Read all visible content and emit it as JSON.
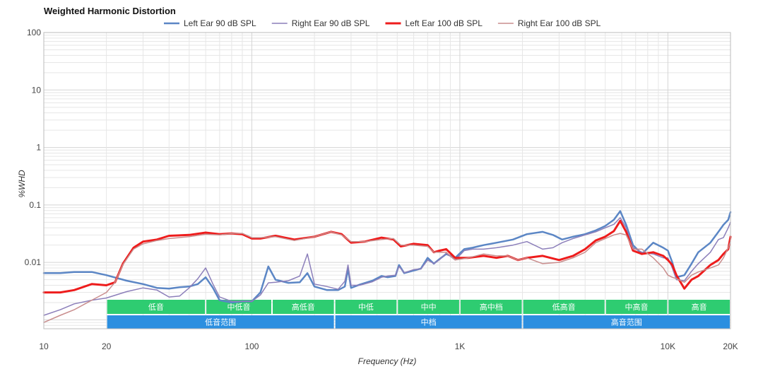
{
  "chart_data": {
    "type": "line",
    "title": "Weighted Harmonic Distortion",
    "xlabel": "Frequency (Hz)",
    "ylabel": "%WHD",
    "x_scale": "log",
    "y_scale": "log",
    "xlim": [
      10,
      20000
    ],
    "ylim": [
      0.0007,
      100
    ],
    "grid": true,
    "legend_position": "top-center",
    "x_ticks": [
      {
        "value": 10,
        "label": "10"
      },
      {
        "value": 20,
        "label": "20"
      },
      {
        "value": 100,
        "label": "100"
      },
      {
        "value": 1000,
        "label": "1K"
      },
      {
        "value": 10000,
        "label": "10K"
      },
      {
        "value": 20000,
        "label": "20K"
      }
    ],
    "y_ticks": [
      {
        "value": 100,
        "label": "100"
      },
      {
        "value": 10,
        "label": "10"
      },
      {
        "value": 1,
        "label": "1"
      },
      {
        "value": 0.1,
        "label": "0.1"
      },
      {
        "value": 0.01,
        "label": "0.01"
      }
    ],
    "series": [
      {
        "name": "Left Ear 90 dB SPL",
        "color": "#5b86c5",
        "width": 2.5,
        "points": [
          [
            10,
            0.0065
          ],
          [
            12,
            0.0065
          ],
          [
            14,
            0.0068
          ],
          [
            17,
            0.0068
          ],
          [
            20,
            0.006
          ],
          [
            25,
            0.0048
          ],
          [
            30,
            0.0042
          ],
          [
            35,
            0.0036
          ],
          [
            40,
            0.0035
          ],
          [
            45,
            0.0037
          ],
          [
            50,
            0.0038
          ],
          [
            55,
            0.0042
          ],
          [
            60,
            0.0055
          ],
          [
            65,
            0.0036
          ],
          [
            70,
            0.0022
          ],
          [
            80,
            0.002
          ],
          [
            90,
            0.0021
          ],
          [
            100,
            0.0021
          ],
          [
            110,
            0.003
          ],
          [
            120,
            0.0085
          ],
          [
            130,
            0.005
          ],
          [
            150,
            0.0044
          ],
          [
            170,
            0.0045
          ],
          [
            185,
            0.0065
          ],
          [
            200,
            0.0038
          ],
          [
            230,
            0.0033
          ],
          [
            260,
            0.0033
          ],
          [
            280,
            0.0038
          ],
          [
            290,
            0.0078
          ],
          [
            300,
            0.0036
          ],
          [
            330,
            0.0041
          ],
          [
            380,
            0.0048
          ],
          [
            420,
            0.0058
          ],
          [
            450,
            0.0055
          ],
          [
            490,
            0.0058
          ],
          [
            510,
            0.009
          ],
          [
            540,
            0.0065
          ],
          [
            600,
            0.0072
          ],
          [
            650,
            0.0078
          ],
          [
            700,
            0.012
          ],
          [
            750,
            0.0095
          ],
          [
            800,
            0.0115
          ],
          [
            860,
            0.014
          ],
          [
            950,
            0.012
          ],
          [
            1050,
            0.017
          ],
          [
            1150,
            0.018
          ],
          [
            1300,
            0.02
          ],
          [
            1500,
            0.022
          ],
          [
            1800,
            0.025
          ],
          [
            2100,
            0.031
          ],
          [
            2500,
            0.034
          ],
          [
            2800,
            0.03
          ],
          [
            3100,
            0.025
          ],
          [
            3500,
            0.028
          ],
          [
            4000,
            0.031
          ],
          [
            4500,
            0.036
          ],
          [
            5000,
            0.043
          ],
          [
            5500,
            0.055
          ],
          [
            5900,
            0.078
          ],
          [
            6300,
            0.045
          ],
          [
            6800,
            0.02
          ],
          [
            7500,
            0.014
          ],
          [
            8500,
            0.022
          ],
          [
            9500,
            0.018
          ],
          [
            10000,
            0.016
          ],
          [
            10500,
            0.01
          ],
          [
            11000,
            0.0055
          ],
          [
            12000,
            0.006
          ],
          [
            13000,
            0.0095
          ],
          [
            14000,
            0.015
          ],
          [
            16000,
            0.022
          ],
          [
            17500,
            0.034
          ],
          [
            18500,
            0.045
          ],
          [
            19500,
            0.055
          ],
          [
            20000,
            0.075
          ]
        ]
      },
      {
        "name": "Right Ear 90 dB SPL",
        "color": "#8c7fba",
        "width": 1.5,
        "points": [
          [
            10,
            0.0012
          ],
          [
            12,
            0.0015
          ],
          [
            14,
            0.0019
          ],
          [
            17,
            0.0022
          ],
          [
            20,
            0.0024
          ],
          [
            25,
            0.0031
          ],
          [
            30,
            0.0036
          ],
          [
            35,
            0.0033
          ],
          [
            40,
            0.0025
          ],
          [
            45,
            0.0026
          ],
          [
            50,
            0.0036
          ],
          [
            55,
            0.0052
          ],
          [
            60,
            0.008
          ],
          [
            65,
            0.0042
          ],
          [
            70,
            0.0025
          ],
          [
            80,
            0.0021
          ],
          [
            90,
            0.0021
          ],
          [
            100,
            0.0021
          ],
          [
            110,
            0.0027
          ],
          [
            120,
            0.0044
          ],
          [
            130,
            0.0045
          ],
          [
            150,
            0.0048
          ],
          [
            170,
            0.0058
          ],
          [
            185,
            0.014
          ],
          [
            200,
            0.0042
          ],
          [
            230,
            0.0038
          ],
          [
            260,
            0.0034
          ],
          [
            280,
            0.0047
          ],
          [
            290,
            0.009
          ],
          [
            300,
            0.004
          ],
          [
            330,
            0.004
          ],
          [
            380,
            0.0046
          ],
          [
            420,
            0.0055
          ],
          [
            450,
            0.0058
          ],
          [
            490,
            0.006
          ],
          [
            510,
            0.0085
          ],
          [
            540,
            0.0066
          ],
          [
            600,
            0.0075
          ],
          [
            650,
            0.0077
          ],
          [
            700,
            0.011
          ],
          [
            750,
            0.0095
          ],
          [
            800,
            0.0112
          ],
          [
            860,
            0.0145
          ],
          [
            950,
            0.011
          ],
          [
            1050,
            0.016
          ],
          [
            1150,
            0.017
          ],
          [
            1300,
            0.017
          ],
          [
            1500,
            0.018
          ],
          [
            1800,
            0.02
          ],
          [
            2100,
            0.023
          ],
          [
            2500,
            0.017
          ],
          [
            2800,
            0.018
          ],
          [
            3100,
            0.022
          ],
          [
            3500,
            0.026
          ],
          [
            4000,
            0.03
          ],
          [
            4500,
            0.034
          ],
          [
            5000,
            0.04
          ],
          [
            5500,
            0.046
          ],
          [
            5900,
            0.06
          ],
          [
            6300,
            0.04
          ],
          [
            6800,
            0.018
          ],
          [
            7500,
            0.015
          ],
          [
            8500,
            0.014
          ],
          [
            9500,
            0.012
          ],
          [
            10000,
            0.012
          ],
          [
            10500,
            0.008
          ],
          [
            11000,
            0.005
          ],
          [
            12000,
            0.0048
          ],
          [
            13000,
            0.007
          ],
          [
            14000,
            0.0095
          ],
          [
            16000,
            0.015
          ],
          [
            17500,
            0.025
          ],
          [
            18500,
            0.027
          ],
          [
            19500,
            0.04
          ],
          [
            20000,
            0.05
          ]
        ]
      },
      {
        "name": "Left Ear 100 dB SPL",
        "color": "#ee1c1c",
        "width": 3,
        "points": [
          [
            10,
            0.003
          ],
          [
            12,
            0.003
          ],
          [
            14,
            0.0033
          ],
          [
            17,
            0.0042
          ],
          [
            20,
            0.004
          ],
          [
            22,
            0.0045
          ],
          [
            24,
            0.0095
          ],
          [
            27,
            0.018
          ],
          [
            30,
            0.023
          ],
          [
            35,
            0.025
          ],
          [
            40,
            0.029
          ],
          [
            50,
            0.03
          ],
          [
            60,
            0.033
          ],
          [
            70,
            0.031
          ],
          [
            80,
            0.032
          ],
          [
            90,
            0.031
          ],
          [
            100,
            0.026
          ],
          [
            110,
            0.026
          ],
          [
            130,
            0.029
          ],
          [
            160,
            0.025
          ],
          [
            200,
            0.028
          ],
          [
            240,
            0.034
          ],
          [
            270,
            0.031
          ],
          [
            300,
            0.022
          ],
          [
            350,
            0.023
          ],
          [
            420,
            0.027
          ],
          [
            480,
            0.025
          ],
          [
            520,
            0.019
          ],
          [
            600,
            0.021
          ],
          [
            700,
            0.02
          ],
          [
            750,
            0.015
          ],
          [
            800,
            0.016
          ],
          [
            860,
            0.017
          ],
          [
            950,
            0.012
          ],
          [
            1100,
            0.012
          ],
          [
            1300,
            0.013
          ],
          [
            1500,
            0.012
          ],
          [
            1700,
            0.013
          ],
          [
            1900,
            0.011
          ],
          [
            2100,
            0.012
          ],
          [
            2500,
            0.013
          ],
          [
            3000,
            0.011
          ],
          [
            3500,
            0.013
          ],
          [
            4000,
            0.017
          ],
          [
            4500,
            0.024
          ],
          [
            5000,
            0.028
          ],
          [
            5500,
            0.035
          ],
          [
            5900,
            0.053
          ],
          [
            6300,
            0.034
          ],
          [
            6800,
            0.016
          ],
          [
            7500,
            0.014
          ],
          [
            8500,
            0.015
          ],
          [
            9500,
            0.013
          ],
          [
            10000,
            0.011
          ],
          [
            10500,
            0.009
          ],
          [
            11000,
            0.006
          ],
          [
            12000,
            0.0035
          ],
          [
            13000,
            0.005
          ],
          [
            14000,
            0.0058
          ],
          [
            16000,
            0.009
          ],
          [
            17500,
            0.011
          ],
          [
            18500,
            0.014
          ],
          [
            19500,
            0.017
          ],
          [
            20000,
            0.028
          ]
        ]
      },
      {
        "name": "Right Ear 100 dB SPL",
        "color": "#c98d8d",
        "width": 1.5,
        "points": [
          [
            10,
            0.0009
          ],
          [
            12,
            0.0012
          ],
          [
            14,
            0.0015
          ],
          [
            17,
            0.0022
          ],
          [
            20,
            0.003
          ],
          [
            22,
            0.0045
          ],
          [
            24,
            0.0092
          ],
          [
            27,
            0.017
          ],
          [
            30,
            0.021
          ],
          [
            35,
            0.024
          ],
          [
            40,
            0.026
          ],
          [
            50,
            0.028
          ],
          [
            60,
            0.031
          ],
          [
            70,
            0.03
          ],
          [
            80,
            0.032
          ],
          [
            90,
            0.032
          ],
          [
            100,
            0.027
          ],
          [
            110,
            0.027
          ],
          [
            130,
            0.028
          ],
          [
            160,
            0.024
          ],
          [
            200,
            0.028
          ],
          [
            240,
            0.034
          ],
          [
            270,
            0.03
          ],
          [
            300,
            0.023
          ],
          [
            350,
            0.023
          ],
          [
            420,
            0.025
          ],
          [
            480,
            0.026
          ],
          [
            520,
            0.02
          ],
          [
            600,
            0.02
          ],
          [
            700,
            0.019
          ],
          [
            750,
            0.015
          ],
          [
            800,
            0.015
          ],
          [
            860,
            0.015
          ],
          [
            950,
            0.011
          ],
          [
            1100,
            0.012
          ],
          [
            1300,
            0.014
          ],
          [
            1500,
            0.013
          ],
          [
            1700,
            0.013
          ],
          [
            1900,
            0.011
          ],
          [
            2100,
            0.012
          ],
          [
            2500,
            0.0095
          ],
          [
            3000,
            0.01
          ],
          [
            3500,
            0.012
          ],
          [
            4000,
            0.015
          ],
          [
            4500,
            0.022
          ],
          [
            5000,
            0.026
          ],
          [
            5500,
            0.03
          ],
          [
            5900,
            0.032
          ],
          [
            6300,
            0.03
          ],
          [
            6800,
            0.017
          ],
          [
            7500,
            0.017
          ],
          [
            8500,
            0.012
          ],
          [
            9500,
            0.008
          ],
          [
            10000,
            0.006
          ],
          [
            10500,
            0.0055
          ],
          [
            11000,
            0.0052
          ],
          [
            12000,
            0.0045
          ],
          [
            13000,
            0.006
          ],
          [
            14000,
            0.0068
          ],
          [
            16000,
            0.008
          ],
          [
            17500,
            0.009
          ],
          [
            18500,
            0.012
          ],
          [
            19500,
            0.018
          ],
          [
            20000,
            0.023
          ]
        ]
      }
    ],
    "bands": {
      "upper": [
        {
          "label": "低音",
          "from": 20,
          "to": 60,
          "color": "#2ecc71"
        },
        {
          "label": "中低音",
          "from": 60,
          "to": 125,
          "color": "#2ecc71"
        },
        {
          "label": "高低音",
          "from": 125,
          "to": 250,
          "color": "#2ecc71"
        },
        {
          "label": "中低",
          "from": 250,
          "to": 500,
          "color": "#2ecc71"
        },
        {
          "label": "中中",
          "from": 500,
          "to": 1000,
          "color": "#2ecc71"
        },
        {
          "label": "高中档",
          "from": 1000,
          "to": 2000,
          "color": "#2ecc71"
        },
        {
          "label": "低高音",
          "from": 2000,
          "to": 5000,
          "color": "#2ecc71"
        },
        {
          "label": "中高音",
          "from": 5000,
          "to": 10000,
          "color": "#2ecc71"
        },
        {
          "label": "高音",
          "from": 10000,
          "to": 20000,
          "color": "#2ecc71"
        }
      ],
      "lower": [
        {
          "label": "低音范围",
          "from": 20,
          "to": 250,
          "color": "#2b8fe0"
        },
        {
          "label": "中档",
          "from": 250,
          "to": 2000,
          "color": "#2b8fe0"
        },
        {
          "label": "高音范围",
          "from": 2000,
          "to": 20000,
          "color": "#2b8fe0"
        }
      ]
    }
  }
}
